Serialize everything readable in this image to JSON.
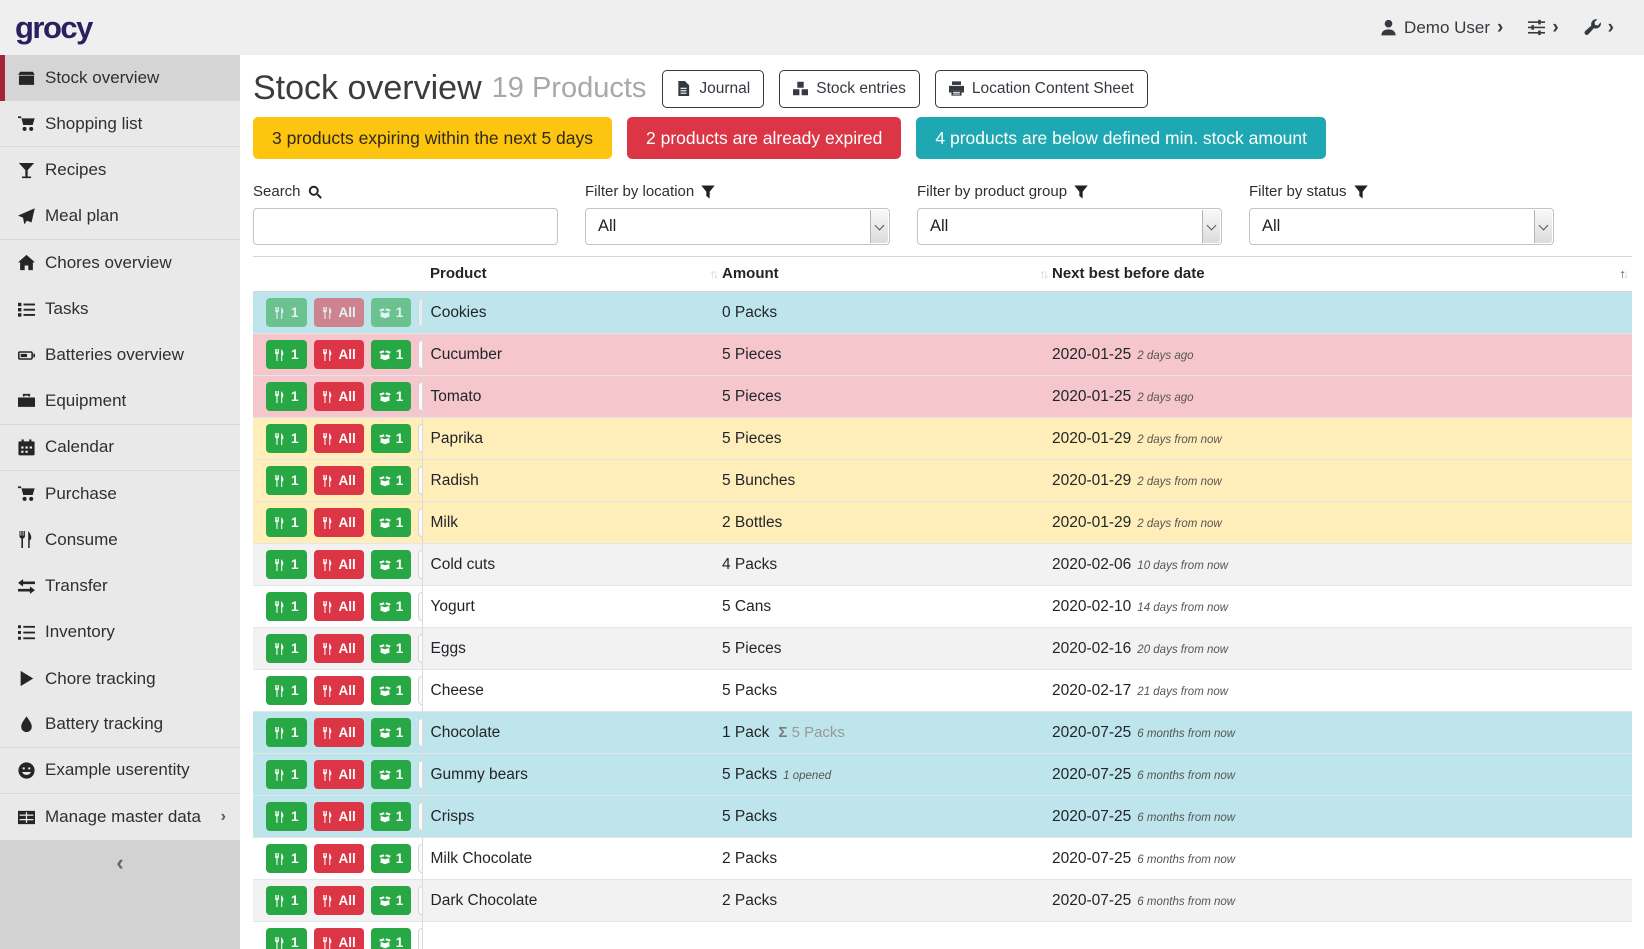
{
  "brand": "grocy",
  "colors": {
    "brand": "#2a2060",
    "accent_red": "#a32638",
    "warning": "#fdc410",
    "danger": "#dc3545",
    "info": "#1ea8b3",
    "success": "#28a745",
    "row_below_min": "#bee5eb",
    "row_expired": "#f5c6cb",
    "row_expiring": "#ffeeba"
  },
  "topbar": {
    "user_label": "Demo User"
  },
  "sidebar": {
    "items": [
      {
        "label": "Stock overview",
        "icon": "box-icon",
        "active": true
      },
      {
        "label": "Shopping list",
        "icon": "shopping-cart-icon",
        "divider_after": true
      },
      {
        "label": "Recipes",
        "icon": "cocktail-icon"
      },
      {
        "label": "Meal plan",
        "icon": "paper-plane-icon",
        "divider_after": true
      },
      {
        "label": "Chores overview",
        "icon": "home-icon"
      },
      {
        "label": "Tasks",
        "icon": "tasks-icon"
      },
      {
        "label": "Batteries overview",
        "icon": "battery-icon"
      },
      {
        "label": "Equipment",
        "icon": "toolbox-icon",
        "divider_after": true
      },
      {
        "label": "Calendar",
        "icon": "calendar-icon",
        "divider_after": true
      },
      {
        "label": "Purchase",
        "icon": "shopping-cart-icon"
      },
      {
        "label": "Consume",
        "icon": "utensils-icon"
      },
      {
        "label": "Transfer",
        "icon": "exchange-icon"
      },
      {
        "label": "Inventory",
        "icon": "list-icon"
      },
      {
        "label": "Chore tracking",
        "icon": "play-icon"
      },
      {
        "label": "Battery tracking",
        "icon": "droplet-icon",
        "divider_after": true
      },
      {
        "label": "Example userentity",
        "icon": "smiley-icon",
        "divider_after": true
      },
      {
        "label": "Manage master data",
        "icon": "table-icon",
        "submenu": true
      }
    ]
  },
  "header": {
    "title": "Stock overview",
    "subtitle": "19 Products",
    "buttons": [
      {
        "name": "journal-button",
        "label": "Journal",
        "icon": "journal-icon"
      },
      {
        "name": "stock-entries-button",
        "label": "Stock entries",
        "icon": "boxes-icon"
      },
      {
        "name": "location-content-sheet-button",
        "label": "Location Content Sheet",
        "icon": "printer-icon"
      }
    ]
  },
  "alerts": [
    {
      "name": "expiring-soon-alert",
      "text": "3 products expiring within the next 5 days",
      "style": "warning"
    },
    {
      "name": "expired-alert",
      "text": "2 products are already expired",
      "style": "danger"
    },
    {
      "name": "below-min-stock-alert",
      "text": "4 products are below defined min. stock amount",
      "style": "info"
    }
  ],
  "filters": {
    "search": {
      "label": "Search",
      "value": ""
    },
    "location": {
      "label": "Filter by location",
      "value": "All"
    },
    "product_group": {
      "label": "Filter by product group",
      "value": "All"
    },
    "status": {
      "label": "Filter by status",
      "value": "All"
    }
  },
  "table": {
    "columns": [
      {
        "label": "Product",
        "sorted": ""
      },
      {
        "label": "Amount",
        "sorted": ""
      },
      {
        "label": "Next best before date",
        "sorted": "asc"
      }
    ],
    "row_actions": {
      "consume_one": "1",
      "consume_all": "All",
      "open_one": "1"
    },
    "rows": [
      {
        "product": "Cookies",
        "amount": "0 Packs",
        "date": "",
        "relative": "",
        "status": "below-min",
        "actions_disabled": true
      },
      {
        "product": "Cucumber",
        "amount": "5 Pieces",
        "date": "2020-01-25",
        "relative": "2 days ago",
        "status": "expired"
      },
      {
        "product": "Tomato",
        "amount": "5 Pieces",
        "date": "2020-01-25",
        "relative": "2 days ago",
        "status": "expired"
      },
      {
        "product": "Paprika",
        "amount": "5 Pieces",
        "date": "2020-01-29",
        "relative": "2 days from now",
        "status": "expiring-soon"
      },
      {
        "product": "Radish",
        "amount": "5 Bunches",
        "date": "2020-01-29",
        "relative": "2 days from now",
        "status": "expiring-soon"
      },
      {
        "product": "Milk",
        "amount": "2 Bottles",
        "date": "2020-01-29",
        "relative": "2 days from now",
        "status": "expiring-soon"
      },
      {
        "product": "Cold cuts",
        "amount": "4 Packs",
        "date": "2020-02-06",
        "relative": "10 days from now",
        "status": "none"
      },
      {
        "product": "Yogurt",
        "amount": "5 Cans",
        "date": "2020-02-10",
        "relative": "14 days from now",
        "status": "none"
      },
      {
        "product": "Eggs",
        "amount": "5 Pieces",
        "date": "2020-02-16",
        "relative": "20 days from now",
        "status": "none"
      },
      {
        "product": "Cheese",
        "amount": "5 Packs",
        "date": "2020-02-17",
        "relative": "21 days from now",
        "status": "none"
      },
      {
        "product": "Chocolate",
        "amount": "1 Pack",
        "amount_sum": "5 Packs",
        "date": "2020-07-25",
        "relative": "6 months from now",
        "status": "below-min"
      },
      {
        "product": "Gummy bears",
        "amount": "5 Packs",
        "amount_opened": "1 opened",
        "date": "2020-07-25",
        "relative": "6 months from now",
        "status": "below-min"
      },
      {
        "product": "Crisps",
        "amount": "5 Packs",
        "date": "2020-07-25",
        "relative": "6 months from now",
        "status": "below-min"
      },
      {
        "product": "Milk Chocolate",
        "amount": "2 Packs",
        "date": "2020-07-25",
        "relative": "6 months from now",
        "status": "none"
      },
      {
        "product": "Dark Chocolate",
        "amount": "2 Packs",
        "date": "2020-07-25",
        "relative": "6 months from now",
        "status": "none"
      },
      {
        "product": "",
        "amount": "",
        "date": "",
        "relative": "",
        "status": "none",
        "partial": true
      }
    ]
  }
}
